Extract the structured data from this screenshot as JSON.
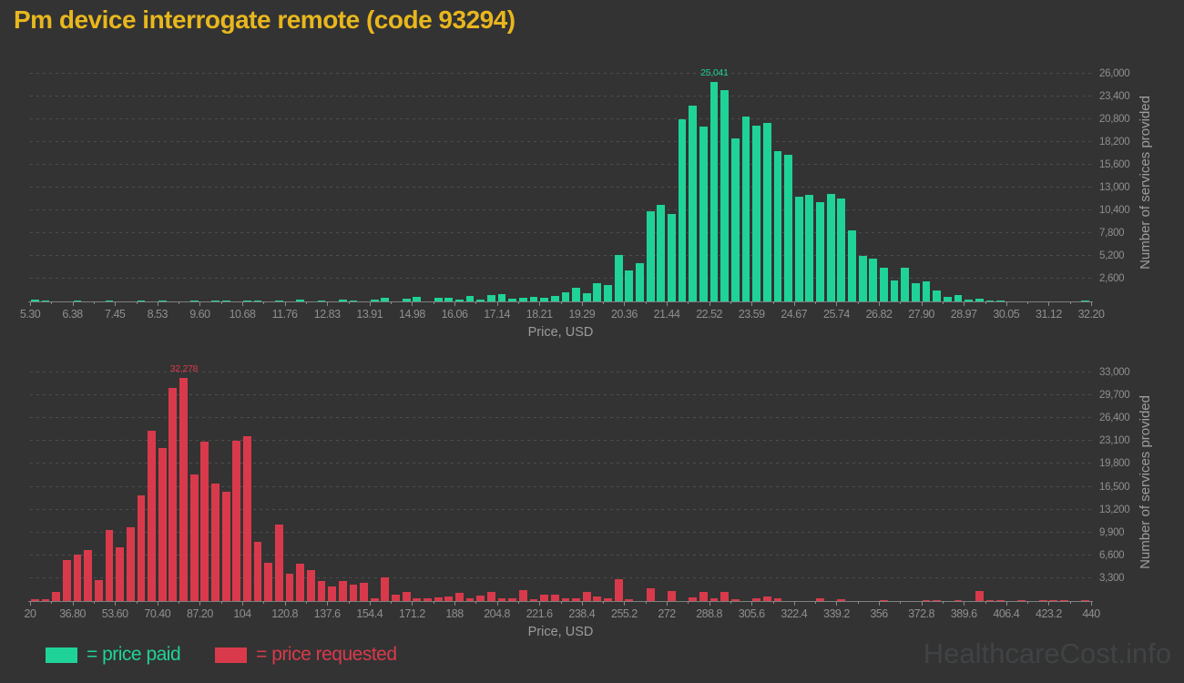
{
  "title": "Pm device interrogate remote (code 93294)",
  "title_color": "#e8b71d",
  "watermark": "HealthcareCost.info",
  "colors": {
    "background": "#333333",
    "price_paid": "#1fd398",
    "price_requested": "#d93a4b",
    "grid": "#4d4d4d",
    "axis": "#7f7f7f",
    "tick_text": "#8f8f8f",
    "axis_title_text": "#9c9c9c",
    "watermark_text": "#404345"
  },
  "legend": [
    {
      "label": "= price paid",
      "color": "#1fd398"
    },
    {
      "label": "= price requested",
      "color": "#d93a4b"
    }
  ],
  "chart_data": [
    {
      "type": "bar",
      "name": "price paid histogram",
      "color": "#1fd398",
      "xlabel": "Price, USD",
      "ylabel": "Number of services provided",
      "x_start": 5.3,
      "x_end": 32.2,
      "bin_width": 0.269,
      "grid": true,
      "legend_position": "bottom",
      "x_tick_labels": [
        "5.30",
        "6.38",
        "7.45",
        "8.53",
        "9.60",
        "10.68",
        "11.76",
        "12.83",
        "13.91",
        "14.98",
        "16.06",
        "17.14",
        "18.21",
        "19.29",
        "20.36",
        "21.44",
        "22.52",
        "23.59",
        "24.67",
        "25.74",
        "26.82",
        "27.90",
        "28.97",
        "30.05",
        "31.12",
        "32.20"
      ],
      "y_tick_labels": [
        "2,600",
        "5,200",
        "7,800",
        "10,400",
        "13,000",
        "15,600",
        "18,200",
        "20,800",
        "23,400",
        "26,000"
      ],
      "y_tick_values": [
        2600,
        5200,
        7800,
        10400,
        13000,
        15600,
        18200,
        20800,
        23400,
        26000
      ],
      "ylim": [
        0,
        27100
      ],
      "peak_annotation": {
        "text": "25,041",
        "value": 25041,
        "bin_index": 64
      },
      "values": [
        160,
        140,
        0,
        0,
        150,
        0,
        0,
        130,
        0,
        0,
        140,
        0,
        130,
        0,
        0,
        130,
        0,
        140,
        150,
        0,
        140,
        150,
        0,
        140,
        0,
        160,
        0,
        150,
        0,
        160,
        150,
        0,
        170,
        420,
        0,
        280,
        520,
        0,
        400,
        430,
        180,
        600,
        250,
        700,
        870,
        350,
        450,
        520,
        380,
        600,
        1070,
        1560,
        970,
        2080,
        1840,
        5300,
        3570,
        4370,
        10330,
        11000,
        10000,
        20800,
        22400,
        20000,
        25041,
        24100,
        18600,
        21100,
        20100,
        20400,
        17200,
        16700,
        12000,
        12200,
        11300,
        12300,
        11800,
        8100,
        5200,
        4900,
        3900,
        2400,
        3900,
        2100,
        2300,
        1200,
        550,
        730,
        210,
        280,
        100,
        140,
        0,
        0,
        0,
        0,
        0,
        0,
        0,
        120
      ]
    },
    {
      "type": "bar",
      "name": "price requested histogram",
      "color": "#d93a4b",
      "xlabel": "Price, USD",
      "ylabel": "Number of services provided",
      "x_start": 20,
      "x_end": 440,
      "bin_width": 4.2,
      "grid": true,
      "legend_position": "bottom",
      "x_tick_labels": [
        "20",
        "36.80",
        "53.60",
        "70.40",
        "87.20",
        "104",
        "120.8",
        "137.6",
        "154.4",
        "171.2",
        "188",
        "204.8",
        "221.6",
        "238.4",
        "255.2",
        "272",
        "288.8",
        "305.6",
        "322.4",
        "339.2",
        "356",
        "372.8",
        "389.6",
        "406.4",
        "423.2",
        "440"
      ],
      "y_tick_labels": [
        "3,300",
        "6,600",
        "9,900",
        "13,200",
        "16,500",
        "19,800",
        "23,100",
        "26,400",
        "29,700",
        "33,000"
      ],
      "y_tick_values": [
        3300,
        6600,
        9900,
        13200,
        16500,
        19800,
        23100,
        26400,
        29700,
        33000
      ],
      "ylim": [
        0,
        34300
      ],
      "peak_annotation": {
        "text": "32,278",
        "value": 32278,
        "bin_index": 14
      },
      "values": [
        260,
        220,
        1300,
        5900,
        6700,
        7400,
        3000,
        10300,
        7700,
        10600,
        15300,
        24600,
        22100,
        30800,
        32278,
        18300,
        23050,
        17000,
        15750,
        23150,
        23850,
        8570,
        5520,
        11100,
        3900,
        5440,
        4480,
        2950,
        2170,
        2900,
        2390,
        2600,
        430,
        3470,
        950,
        1300,
        350,
        350,
        520,
        650,
        1200,
        430,
        780,
        1300,
        350,
        430,
        1520,
        220,
        870,
        870,
        350,
        340,
        1280,
        640,
        430,
        3210,
        260,
        0,
        1800,
        0,
        1430,
        0,
        500,
        1280,
        350,
        1280,
        200,
        0,
        350,
        650,
        350,
        0,
        0,
        0,
        350,
        0,
        220,
        0,
        0,
        0,
        150,
        0,
        0,
        0,
        150,
        150,
        0,
        150,
        0,
        1400,
        150,
        150,
        0,
        150,
        0,
        150,
        150,
        150,
        0,
        150
      ]
    }
  ]
}
